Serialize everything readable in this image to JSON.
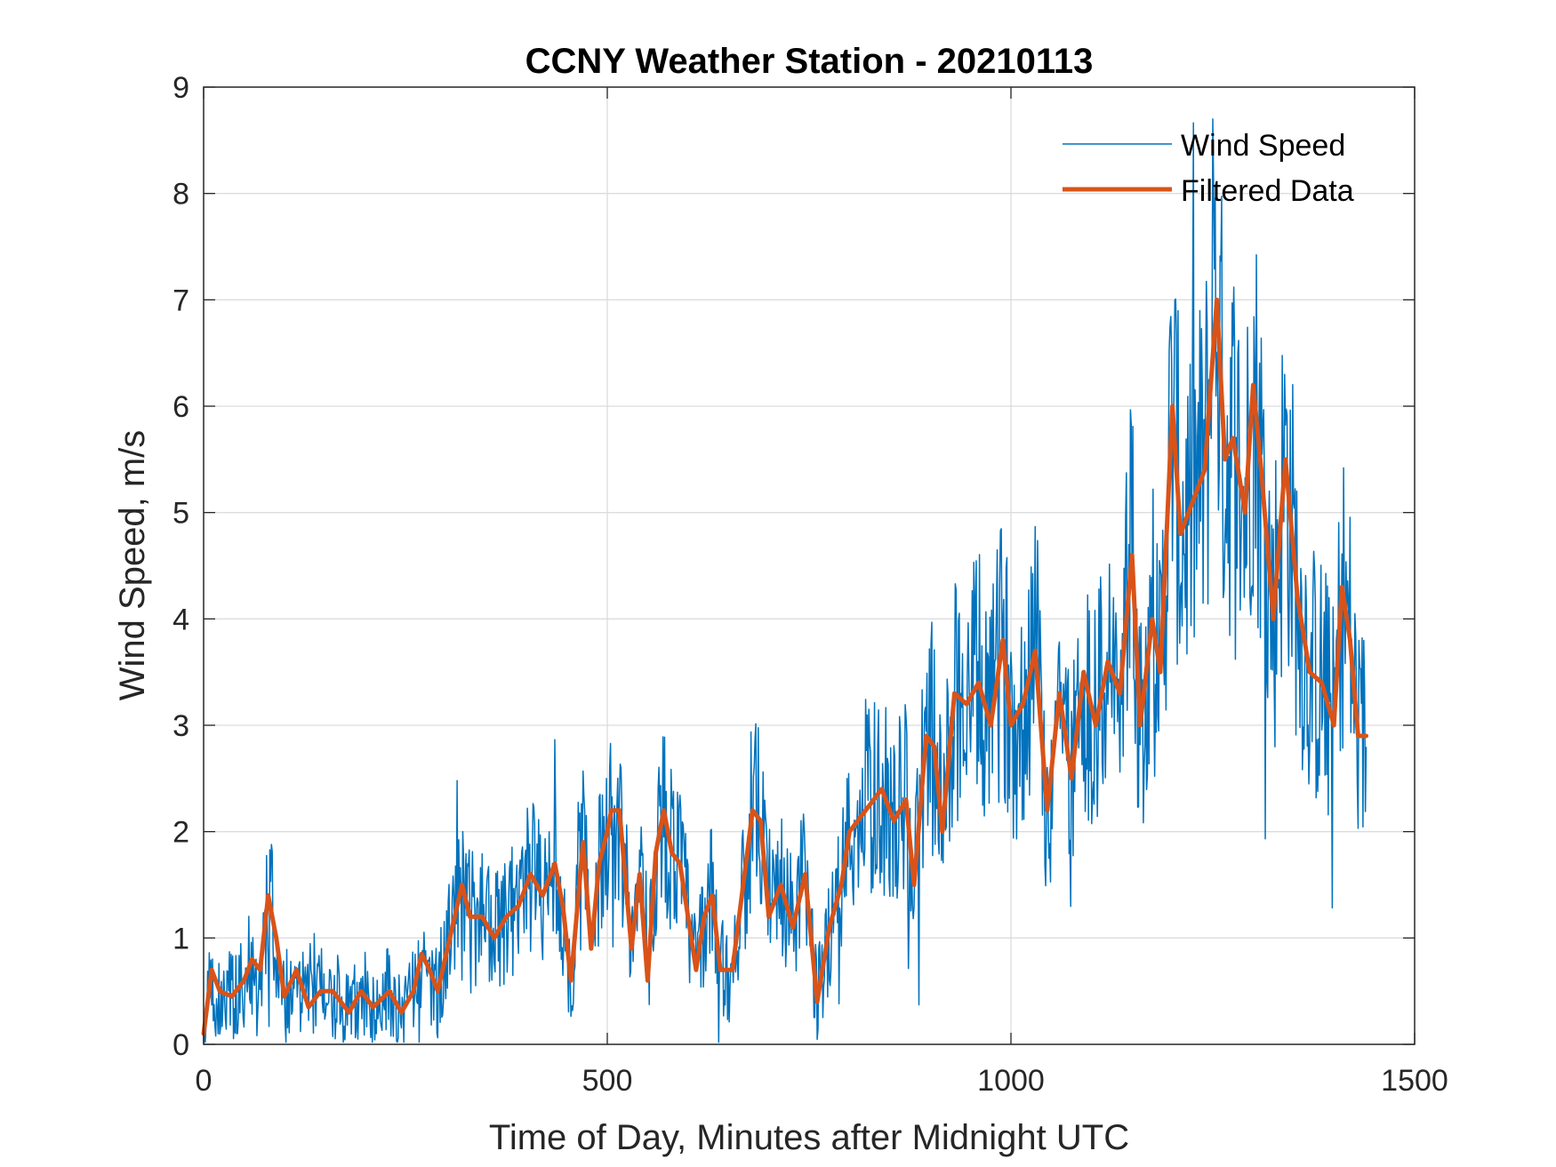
{
  "chart_data": {
    "type": "line",
    "title": "CCNY Weather Station - 20210113",
    "xlabel": "Time of Day, Minutes after Midnight UTC",
    "ylabel": "Wind Speed, m/s",
    "xlim": [
      0,
      1500
    ],
    "ylim": [
      0,
      9
    ],
    "xticks": [
      0,
      500,
      1000,
      1500
    ],
    "xtick_labels": [
      "0",
      "500",
      "1000",
      "1500"
    ],
    "yticks": [
      0,
      1,
      2,
      3,
      4,
      5,
      6,
      7,
      8,
      9
    ],
    "ytick_labels": [
      "0",
      "1",
      "2",
      "3",
      "4",
      "5",
      "6",
      "7",
      "8",
      "9"
    ],
    "grid": true,
    "legend_position": "top-right",
    "series": [
      {
        "name": "Wind Speed",
        "color": "#0072BD",
        "style": "thin-noisy",
        "description": "per-minute raw wind speed, noisy around the filtered trend",
        "x": [
          0,
          30,
          60,
          90,
          120,
          150,
          180,
          210,
          240,
          270,
          300,
          330,
          360,
          390,
          420,
          450,
          480,
          510,
          540,
          570,
          600,
          630,
          660,
          690,
          720,
          750,
          780,
          810,
          840,
          870,
          900,
          930,
          960,
          990,
          1020,
          1050,
          1080,
          1110,
          1140,
          1170,
          1200,
          1230,
          1260,
          1290,
          1320,
          1350,
          1380,
          1410,
          1440
        ],
        "peak": {
          "x": 1250,
          "y": 8.7
        }
      },
      {
        "name": "Filtered Data",
        "color": "#D95319",
        "style": "thick",
        "x": [
          0,
          5,
          10,
          20,
          35,
          50,
          60,
          70,
          80,
          90,
          100,
          115,
          130,
          145,
          160,
          180,
          195,
          210,
          230,
          245,
          260,
          270,
          280,
          290,
          305,
          320,
          330,
          345,
          360,
          375,
          390,
          405,
          420,
          435,
          445,
          455,
          470,
          480,
          490,
          500,
          505,
          515,
          530,
          540,
          550,
          560,
          570,
          580,
          590,
          600,
          610,
          620,
          630,
          640,
          655,
          670,
          680,
          690,
          700,
          715,
          730,
          745,
          760,
          775,
          790,
          800,
          820,
          840,
          855,
          870,
          880,
          895,
          905,
          915,
          930,
          945,
          960,
          975,
          990,
          1000,
          1015,
          1030,
          1045,
          1060,
          1075,
          1090,
          1105,
          1120,
          1135,
          1150,
          1160,
          1175,
          1185,
          1200,
          1210,
          1225,
          1240,
          1255,
          1265,
          1275,
          1290,
          1300,
          1310,
          1325,
          1340,
          1355,
          1370,
          1385,
          1400,
          1410,
          1420,
          1430,
          1440
        ],
        "y": [
          0.1,
          0.4,
          0.7,
          0.5,
          0.45,
          0.6,
          0.8,
          0.7,
          1.4,
          1.0,
          0.45,
          0.7,
          0.35,
          0.5,
          0.5,
          0.3,
          0.5,
          0.35,
          0.5,
          0.3,
          0.5,
          0.85,
          0.7,
          0.5,
          1.0,
          1.5,
          1.2,
          1.2,
          1.0,
          1.2,
          1.3,
          1.6,
          1.4,
          1.7,
          1.3,
          0.6,
          1.9,
          0.9,
          1.7,
          2.0,
          2.2,
          2.2,
          0.9,
          1.6,
          0.6,
          1.8,
          2.2,
          1.8,
          1.7,
          1.2,
          0.7,
          1.2,
          1.4,
          0.7,
          0.7,
          1.6,
          2.2,
          2.1,
          1.2,
          1.5,
          1.1,
          1.6,
          0.4,
          1.1,
          1.5,
          2.0,
          2.2,
          2.4,
          2.1,
          2.3,
          1.5,
          2.9,
          2.8,
          2.0,
          3.3,
          3.2,
          3.4,
          3.0,
          3.8,
          3.0,
          3.2,
          3.7,
          2.2,
          3.3,
          2.5,
          3.5,
          3.0,
          3.6,
          3.3,
          4.6,
          3.0,
          4.0,
          3.5,
          6.0,
          4.8,
          5.1,
          5.4,
          7.0,
          5.5,
          5.7,
          5.0,
          6.2,
          5.4,
          4.0,
          5.5,
          4.2,
          3.5,
          3.4,
          3.0,
          4.3,
          3.8,
          2.9,
          2.9
        ]
      }
    ]
  }
}
